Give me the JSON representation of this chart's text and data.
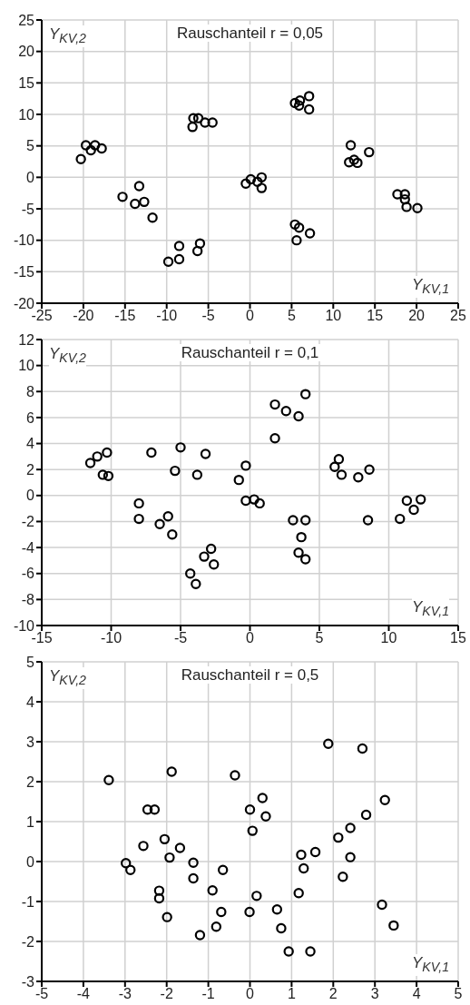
{
  "chart_data": [
    {
      "type": "scatter",
      "title": "Rauschanteil r = 0,05",
      "xlabel": "Y$_{KV,1}$",
      "ylabel": "Y$_{KV,2}$",
      "xlim": [
        -25,
        25
      ],
      "ylim": [
        -20,
        25
      ],
      "xticks": [
        -25,
        -20,
        -15,
        -10,
        -5,
        0,
        5,
        10,
        15,
        20,
        25
      ],
      "yticks": [
        -20,
        -15,
        -10,
        -5,
        0,
        5,
        10,
        15,
        20,
        25
      ],
      "grid": true,
      "marker": "circle",
      "series": [
        {
          "color": "#000000",
          "x": [
            -20.3,
            -19.7,
            -19.1,
            -18.6,
            -17.8,
            -15.3,
            -13.3,
            -13.8,
            -12.7,
            -11.7,
            -9.8,
            -8.5,
            -8.5,
            -6.3,
            -6.0,
            -6.9,
            -6.8,
            -6.2,
            -5.4,
            -4.5,
            -0.5,
            0.1,
            0.9,
            1.4,
            1.4,
            5.4,
            6.0,
            5.9,
            7.1,
            7.1,
            5.4,
            5.9,
            5.6,
            7.2,
            12.1,
            11.9,
            12.5,
            12.9,
            14.3,
            17.7,
            18.6,
            18.6,
            18.8,
            20.1
          ],
          "values": [
            2.9,
            5.1,
            4.3,
            5.1,
            4.6,
            -3.1,
            -1.4,
            -4.2,
            -3.9,
            -6.4,
            -13.4,
            -13.0,
            -10.9,
            -11.7,
            -10.5,
            8.0,
            9.4,
            9.4,
            8.7,
            8.7,
            -1.0,
            -0.3,
            -0.7,
            0,
            -1.7,
            11.8,
            12.2,
            11.4,
            12.9,
            10.8,
            -7.5,
            -8.0,
            -10.0,
            -8.9,
            5.1,
            2.4,
            2.8,
            2.3,
            4.0,
            -2.7,
            -2.7,
            -3.5,
            -4.7,
            -4.9
          ]
        }
      ]
    },
    {
      "type": "scatter",
      "title": "Rauschanteil r = 0,1",
      "xlabel": "Y$_{KV,1}$",
      "ylabel": "Y$_{KV,2}$",
      "xlim": [
        -15,
        15
      ],
      "ylim": [
        -10,
        12
      ],
      "xticks": [
        -15,
        -10,
        -5,
        0,
        5,
        10,
        15
      ],
      "yticks": [
        -10,
        -8,
        -6,
        -4,
        -2,
        0,
        2,
        4,
        6,
        8,
        10,
        12
      ],
      "grid": true,
      "marker": "circle",
      "series": [
        {
          "color": "#000000",
          "x": [
            -11.5,
            -11.0,
            -10.3,
            -10.6,
            -10.2,
            -8.0,
            -8.0,
            -7.1,
            -6.5,
            -5.9,
            -5.6,
            -5.4,
            -5.0,
            -3.8,
            -3.2,
            -4.3,
            -3.9,
            -3.3,
            -2.8,
            -2.6,
            -0.8,
            -0.3,
            -0.3,
            0.3,
            0.7,
            1.8,
            2.6,
            3.5,
            4.0,
            1.8,
            3.1,
            4.0,
            3.7,
            3.5,
            4.0,
            6.1,
            6.4,
            6.6,
            7.8,
            8.6,
            8.5,
            10.8,
            11.3,
            11.8,
            12.3
          ],
          "values": [
            2.5,
            3.0,
            3.3,
            1.6,
            1.5,
            -0.6,
            -1.8,
            3.3,
            -2.2,
            -1.6,
            -3.0,
            1.9,
            3.7,
            1.6,
            3.2,
            -6.0,
            -6.8,
            -4.7,
            -4.1,
            -5.3,
            1.2,
            2.3,
            -0.4,
            -0.3,
            -0.6,
            7.0,
            6.5,
            6.1,
            7.8,
            4.4,
            -1.9,
            -1.9,
            -3.2,
            -4.4,
            -4.9,
            2.2,
            2.8,
            1.6,
            1.4,
            2.0,
            -1.9,
            -1.8,
            -0.4,
            -1.1,
            -0.3
          ]
        }
      ]
    },
    {
      "type": "scatter",
      "title": "Rauschanteil r = 0,5",
      "xlabel": "Y$_{KV,1}$",
      "ylabel": "Y$_{KV,2}$",
      "xlim": [
        -5,
        5
      ],
      "ylim": [
        -3,
        5
      ],
      "xticks": [
        -5,
        -4,
        -3,
        -2,
        -1,
        0,
        1,
        2,
        3,
        4,
        5
      ],
      "yticks": [
        -3,
        -2,
        -1,
        0,
        1,
        2,
        3,
        4,
        5
      ],
      "grid": true,
      "marker": "circle",
      "series": [
        {
          "color": "#000000",
          "x": [
            -3.39,
            -2.98,
            -2.87,
            -2.56,
            -2.46,
            -2.29,
            -2.18,
            -2.18,
            -2.05,
            -1.93,
            -1.99,
            -1.88,
            -1.68,
            -1.36,
            -1.36,
            -1.2,
            -0.9,
            -0.81,
            -0.69,
            -0.65,
            -0.36,
            -0.01,
            0.0,
            0.06,
            0.16,
            0.3,
            0.38,
            0.65,
            0.75,
            0.93,
            1.17,
            1.23,
            1.29,
            1.45,
            1.57,
            1.88,
            2.12,
            2.23,
            2.41,
            2.41,
            2.7,
            2.79,
            3.17,
            3.24,
            3.45
          ],
          "values": [
            2.04,
            -0.04,
            -0.21,
            0.39,
            1.3,
            1.3,
            -0.73,
            -0.92,
            0.56,
            0.1,
            -1.39,
            2.25,
            0.34,
            -0.03,
            -0.42,
            -1.84,
            -0.72,
            -1.63,
            -1.26,
            -0.21,
            2.16,
            -1.26,
            1.3,
            0.77,
            -0.86,
            1.59,
            1.13,
            -1.2,
            -1.67,
            -2.25,
            -0.79,
            0.17,
            -0.17,
            -2.25,
            0.24,
            2.95,
            0.6,
            -0.38,
            0.84,
            0.11,
            2.83,
            1.17,
            -1.08,
            1.54,
            -1.6
          ]
        }
      ]
    }
  ]
}
